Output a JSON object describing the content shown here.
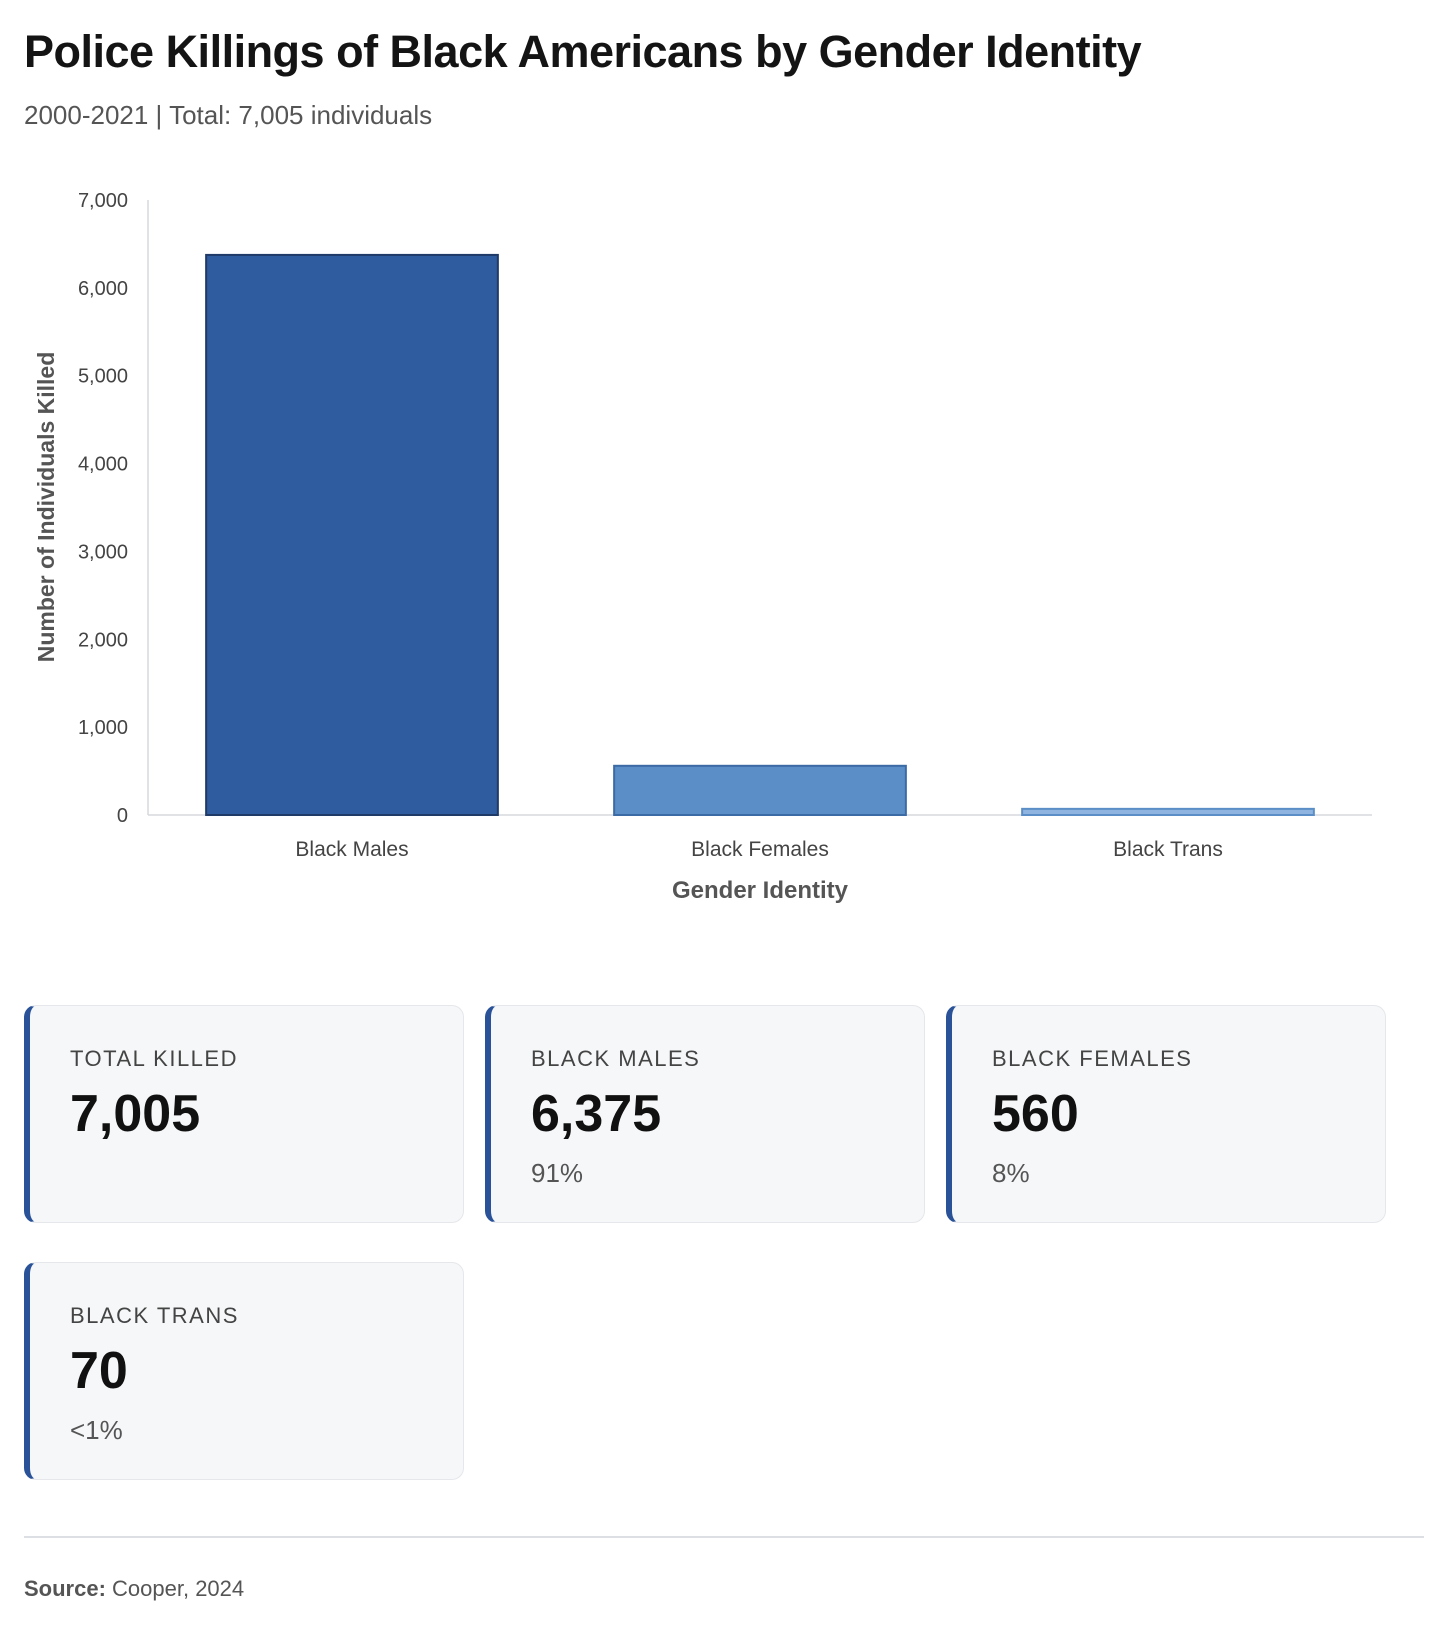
{
  "header": {
    "title": "Police Killings of Black Americans by Gender Identity",
    "subtitle": "2000-2021 | Total: 7,005 individuals"
  },
  "chart_data": {
    "type": "bar",
    "categories": [
      "Black Males",
      "Black Females",
      "Black Trans"
    ],
    "values": [
      6375,
      560,
      70
    ],
    "colors": [
      "#2e5c9f",
      "#5b8ec7",
      "#8fb4df"
    ],
    "border_colors": [
      "#1f3a66",
      "#3b6aa5",
      "#5b8ec7"
    ],
    "xlabel": "Gender Identity",
    "ylabel": "Number of Individuals Killed",
    "ylim": [
      0,
      7000
    ],
    "yticks": [
      0,
      1000,
      2000,
      3000,
      4000,
      5000,
      6000,
      7000
    ],
    "ytick_labels": [
      "0",
      "1,000",
      "2,000",
      "3,000",
      "4,000",
      "5,000",
      "6,000",
      "7,000"
    ],
    "grid": false,
    "legend": "none"
  },
  "stats": [
    {
      "label": "TOTAL KILLED",
      "value": "7,005",
      "pct": ""
    },
    {
      "label": "BLACK MALES",
      "value": "6,375",
      "pct": "91%"
    },
    {
      "label": "BLACK FEMALES",
      "value": "560",
      "pct": "8%"
    },
    {
      "label": "BLACK TRANS",
      "value": "70",
      "pct": "<1%"
    }
  ],
  "footer": {
    "source_label": "Source:",
    "source_text": " Cooper, 2024"
  }
}
